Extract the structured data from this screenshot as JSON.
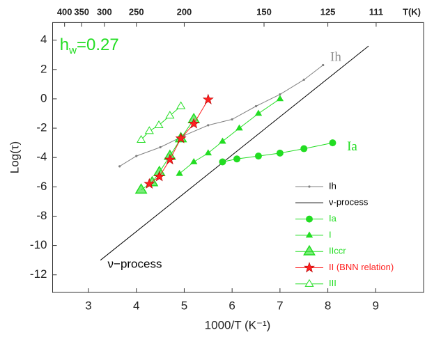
{
  "chart_data": {
    "type": "line",
    "xlabel": "1000/T (K⁻¹)",
    "ylabel": "Log(τ)",
    "xlim": [
      2.25,
      10
    ],
    "ylim": [
      -13.2,
      5.2
    ],
    "xticks": [
      3,
      4,
      5,
      6,
      7,
      8,
      9
    ],
    "yticks": [
      -12,
      -10,
      -8,
      -6,
      -4,
      -2,
      0,
      2,
      4
    ],
    "x2label": "T(K)",
    "x2ticks": [
      {
        "value": 2.5,
        "label": "400"
      },
      {
        "value": 2.857,
        "label": "350"
      },
      {
        "value": 3.333,
        "label": "300"
      },
      {
        "value": 4,
        "label": "250"
      },
      {
        "value": 5,
        "label": "200"
      },
      {
        "value": 6.667,
        "label": "150"
      },
      {
        "value": 8,
        "label": "125"
      },
      {
        "value": 9.009,
        "label": "111"
      }
    ],
    "legend": "lower right",
    "annotations": [
      {
        "main": "h",
        "subscript": "w",
        "suffix": "=0.27",
        "x": 2.4,
        "y": 3.6,
        "color": "#22dd22"
      },
      {
        "text": "Ih",
        "x": 8.05,
        "y": 2.8,
        "color": "#909090"
      },
      {
        "text": "Ia",
        "x": 8.4,
        "y": -3.3,
        "color": "#22dd22"
      },
      {
        "text": "ν−process",
        "x": 3.4,
        "y": -11.3,
        "color": "#000000"
      }
    ],
    "series": [
      {
        "name": "Ih",
        "color": "#808080",
        "legend_text_color": "#000000",
        "marker": "dot",
        "x": [
          3.65,
          4.0,
          4.5,
          5.0,
          5.5,
          6.0,
          6.5,
          7.0,
          7.5,
          7.9
        ],
        "values": [
          -4.6,
          -3.9,
          -3.3,
          -2.5,
          -1.8,
          -1.4,
          -0.5,
          0.3,
          1.3,
          2.3
        ]
      },
      {
        "name": "ν-process",
        "color": "#000000",
        "legend_text_color": "#000000",
        "marker": "none",
        "x": [
          3.25,
          8.85
        ],
        "values": [
          -11,
          3.6
        ]
      },
      {
        "name": "Ia",
        "color": "#22dd22",
        "legend_text_color": "#22dd22",
        "marker": "circle",
        "x": [
          5.8,
          6.1,
          6.55,
          7.0,
          7.5,
          8.1
        ],
        "values": [
          -4.3,
          -4.1,
          -3.9,
          -3.7,
          -3.4,
          -3.0
        ]
      },
      {
        "name": "I",
        "color": "#22dd22",
        "legend_text_color": "#22dd22",
        "marker": "triangle",
        "x": [
          4.9,
          5.2,
          5.5,
          5.8,
          6.15,
          6.55,
          7.0
        ],
        "values": [
          -5.1,
          -4.3,
          -3.7,
          -2.9,
          -2.0,
          -1.0,
          0.0
        ]
      },
      {
        "name": "IIccr",
        "color": "#22dd22",
        "legend_text_color": "#22dd22",
        "marker": "triangle-large",
        "x": [
          4.1,
          4.33,
          4.48,
          4.7,
          4.93,
          5.2
        ],
        "values": [
          -6.2,
          -5.7,
          -5.0,
          -3.9,
          -2.7,
          -1.4
        ]
      },
      {
        "name": "II (BNN relation)",
        "color": "#ff2020",
        "legend_text_color": "#ff2020",
        "marker": "star",
        "x": [
          4.27,
          4.48,
          4.7,
          4.93,
          5.2,
          5.5
        ],
        "values": [
          -5.8,
          -5.3,
          -4.15,
          -2.7,
          -1.7,
          -0.05
        ]
      },
      {
        "name": "III",
        "color": "#22dd22",
        "legend_text_color": "#22dd22",
        "marker": "open-triangle",
        "x": [
          4.1,
          4.27,
          4.47,
          4.7,
          4.93
        ],
        "values": [
          -2.8,
          -2.2,
          -1.8,
          -1.15,
          -0.5
        ]
      }
    ]
  }
}
